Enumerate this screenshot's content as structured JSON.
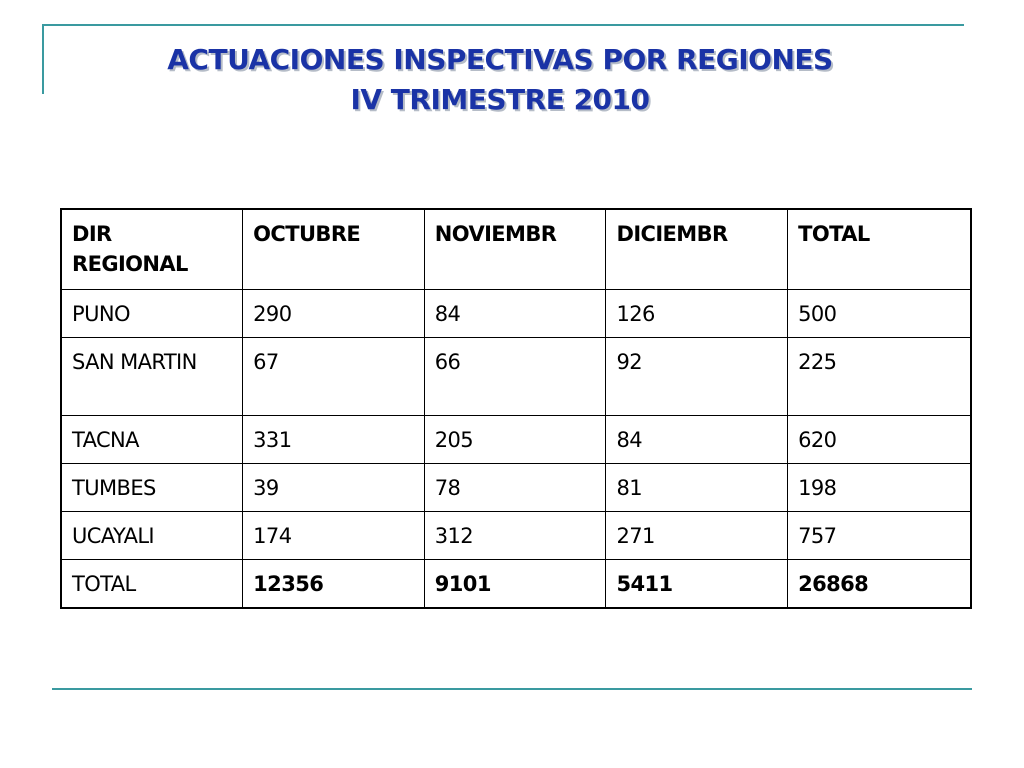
{
  "slide": {
    "title_line1": "ACTUACIONES INSPECTIVAS POR REGIONES",
    "title_line2": "IV TRIMESTRE 2010"
  },
  "table": {
    "headers": [
      "DIR REGIONAL",
      "OCTUBRE",
      "NOVIEMBR",
      "DICIEMBR",
      "TOTAL"
    ],
    "rows": [
      [
        "PUNO",
        "290",
        "84",
        "126",
        "500"
      ],
      [
        "SAN MARTIN",
        "67",
        "66",
        "92",
        "225"
      ],
      [
        "TACNA",
        "331",
        "205",
        "84",
        "620"
      ],
      [
        "TUMBES",
        "39",
        "78",
        "81",
        "198"
      ],
      [
        "UCAYALI",
        "174",
        "312",
        "271",
        "757"
      ],
      [
        "TOTAL",
        "12356",
        "9101",
        "5411",
        "26868"
      ]
    ]
  },
  "colors": {
    "title": "#1a33a6",
    "accent_line": "#3a9aa0"
  }
}
